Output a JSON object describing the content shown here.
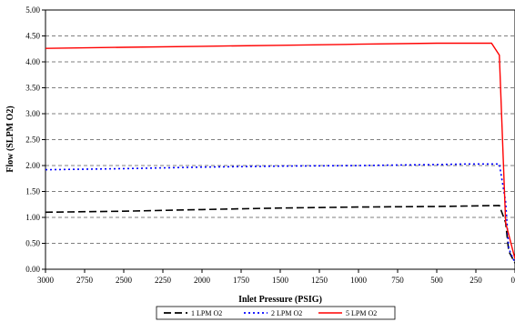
{
  "chart_data": {
    "type": "line",
    "title": "",
    "xlabel": "Inlet Pressure (PSIG)",
    "ylabel": "Flow (SLPM O2)",
    "xlim": [
      3000,
      0
    ],
    "ylim": [
      0,
      5
    ],
    "x_reversed": true,
    "x_ticks": [
      "3000",
      "2750",
      "2500",
      "2250",
      "2000",
      "1750",
      "1500",
      "1250",
      "1000",
      "750",
      "500",
      "250",
      "0"
    ],
    "y_ticks": [
      "0.00",
      "0.50",
      "1.00",
      "1.50",
      "2.00",
      "2.50",
      "3.00",
      "3.50",
      "4.00",
      "4.50",
      "5.00"
    ],
    "grid": "horizontal-dashed",
    "legend_position": "bottom",
    "series": [
      {
        "name": "1 LPM O2",
        "color": "#000000",
        "dash": "long-dash",
        "x": [
          3000,
          2500,
          2000,
          1500,
          1000,
          500,
          300,
          100,
          60,
          40,
          0
        ],
        "y": [
          1.1,
          1.12,
          1.15,
          1.18,
          1.2,
          1.21,
          1.22,
          1.23,
          0.9,
          0.35,
          0.12
        ]
      },
      {
        "name": "2 LPM O2",
        "color": "#0000ff",
        "dash": "dot",
        "x": [
          3000,
          2500,
          2000,
          1500,
          1000,
          500,
          300,
          100,
          60,
          40,
          0
        ],
        "y": [
          1.92,
          1.94,
          1.97,
          1.99,
          2.0,
          2.02,
          2.03,
          2.03,
          1.3,
          0.4,
          0.12
        ]
      },
      {
        "name": "5 LPM O2",
        "color": "#ff0000",
        "dash": "solid",
        "x": [
          3000,
          2500,
          2000,
          1500,
          1000,
          500,
          300,
          150,
          100,
          60,
          0
        ],
        "y": [
          4.26,
          4.28,
          4.3,
          4.32,
          4.34,
          4.36,
          4.36,
          4.36,
          4.13,
          0.9,
          0.2
        ]
      }
    ]
  }
}
